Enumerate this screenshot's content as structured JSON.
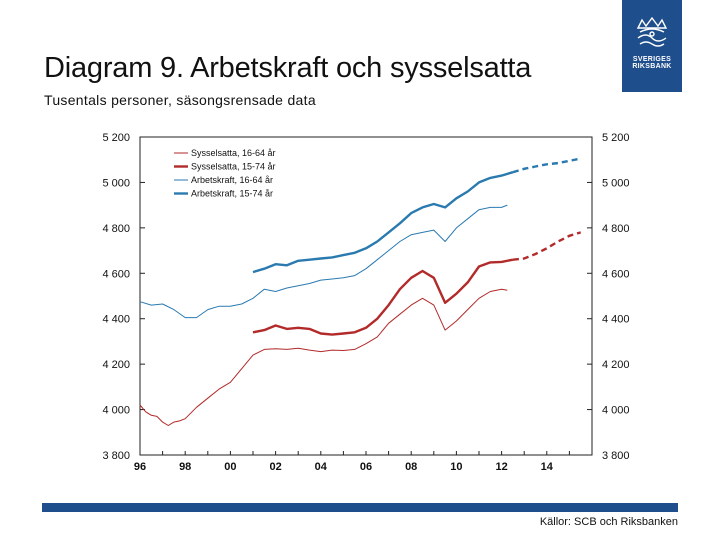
{
  "slide": {
    "title": "Diagram 9. Arbetskraft och sysselsatta",
    "subtitle": "Tusentals personer, säsongsrensade data",
    "source": "Källor: SCB och Riksbanken"
  },
  "logo": {
    "line1": "SVERIGES",
    "line2": "RIKSBANK",
    "icon": "crown-emblem-icon"
  },
  "colors": {
    "brand": "#1f4e8c",
    "employed_color": "#b22a2a",
    "labour_color": "#2a7ab0"
  },
  "chart_data": {
    "type": "line",
    "title": "Diagram 9. Arbetskraft och sysselsatta",
    "ylim": [
      3800,
      5200
    ],
    "yticks": [
      3800,
      4000,
      4200,
      4400,
      4600,
      4800,
      5000,
      5200
    ],
    "ytick_labels": [
      "3 800",
      "4 000",
      "4 200",
      "4 400",
      "4 600",
      "4 800",
      "5 000",
      "5 200"
    ],
    "xlim": [
      1996,
      2016
    ],
    "xticks": [
      1996,
      1998,
      2000,
      2002,
      2004,
      2006,
      2008,
      2010,
      2012,
      2014
    ],
    "xtick_labels": [
      "96",
      "98",
      "00",
      "02",
      "04",
      "06",
      "08",
      "10",
      "12",
      "14"
    ],
    "forecast_start": 2012.5,
    "legend_location": "top-left",
    "series": [
      {
        "name": "Sysselsatta, 16-64 år",
        "color": "#b22a2a",
        "width": 1,
        "x": [
          1996,
          1996.25,
          1996.5,
          1996.75,
          1997,
          1997.25,
          1997.5,
          1997.75,
          1998,
          1998.5,
          1999,
          1999.5,
          2000,
          2000.5,
          2001,
          2001.5,
          2002,
          2002.5,
          2003,
          2003.5,
          2004,
          2004.5,
          2005,
          2005.5,
          2006,
          2006.5,
          2007,
          2007.5,
          2008,
          2008.5,
          2009,
          2009.5,
          2010,
          2010.5,
          2011,
          2011.5,
          2012,
          2012.25
        ],
        "y": [
          4020,
          3990,
          3975,
          3970,
          3945,
          3930,
          3945,
          3950,
          3960,
          4010,
          4050,
          4090,
          4120,
          4180,
          4240,
          4265,
          4268,
          4265,
          4270,
          4262,
          4255,
          4262,
          4260,
          4265,
          4290,
          4320,
          4380,
          4420,
          4460,
          4490,
          4460,
          4350,
          4390,
          4440,
          4490,
          4520,
          4530,
          4525
        ]
      },
      {
        "name": "Sysselsatta, 15-74 år",
        "color": "#b22a2a",
        "width": 2.4,
        "x": [
          2001,
          2001.5,
          2002,
          2002.5,
          2003,
          2003.5,
          2004,
          2004.5,
          2005,
          2005.5,
          2006,
          2006.5,
          2007,
          2007.5,
          2008,
          2008.5,
          2009,
          2009.5,
          2010,
          2010.5,
          2011,
          2011.5,
          2012,
          2012.5
        ],
        "y": [
          4340,
          4350,
          4370,
          4355,
          4360,
          4355,
          4335,
          4330,
          4335,
          4340,
          4360,
          4400,
          4460,
          4530,
          4580,
          4610,
          4580,
          4470,
          4510,
          4560,
          4630,
          4648,
          4650,
          4660
        ],
        "forecast": {
          "x": [
            2012.5,
            2013,
            2013.5,
            2014,
            2014.5,
            2015,
            2015.5
          ],
          "y": [
            4660,
            4665,
            4685,
            4710,
            4740,
            4765,
            4780
          ]
        }
      },
      {
        "name": "Arbetskraft, 16-64 år",
        "color": "#2a7ab0",
        "width": 1,
        "x": [
          1996,
          1996.5,
          1997,
          1997.5,
          1998,
          1998.5,
          1999,
          1999.5,
          2000,
          2000.5,
          2001,
          2001.5,
          2002,
          2002.5,
          2003,
          2003.5,
          2004,
          2004.5,
          2005,
          2005.5,
          2006,
          2006.5,
          2007,
          2007.5,
          2008,
          2008.5,
          2009,
          2009.5,
          2010,
          2010.5,
          2011,
          2011.5,
          2012,
          2012.25
        ],
        "y": [
          4475,
          4460,
          4465,
          4440,
          4405,
          4405,
          4440,
          4455,
          4455,
          4465,
          4490,
          4530,
          4520,
          4535,
          4545,
          4555,
          4570,
          4575,
          4580,
          4590,
          4620,
          4660,
          4700,
          4740,
          4770,
          4780,
          4790,
          4740,
          4800,
          4840,
          4880,
          4890,
          4890,
          4900
        ]
      },
      {
        "name": "Arbetskraft, 15-74 år",
        "color": "#2a7ab0",
        "width": 2.4,
        "x": [
          2001,
          2001.5,
          2002,
          2002.5,
          2003,
          2003.5,
          2004,
          2004.5,
          2005,
          2005.5,
          2006,
          2006.5,
          2007,
          2007.5,
          2008,
          2008.5,
          2009,
          2009.5,
          2010,
          2010.5,
          2011,
          2011.5,
          2012,
          2012.5
        ],
        "y": [
          4605,
          4620,
          4640,
          4635,
          4655,
          4660,
          4665,
          4670,
          4680,
          4690,
          4710,
          4740,
          4780,
          4820,
          4865,
          4890,
          4905,
          4890,
          4930,
          4960,
          5000,
          5020,
          5030,
          5045
        ],
        "forecast": {
          "x": [
            2012.5,
            2013,
            2013.5,
            2014,
            2014.5,
            2015,
            2015.5
          ],
          "y": [
            5045,
            5060,
            5070,
            5080,
            5085,
            5095,
            5105
          ]
        }
      }
    ]
  }
}
